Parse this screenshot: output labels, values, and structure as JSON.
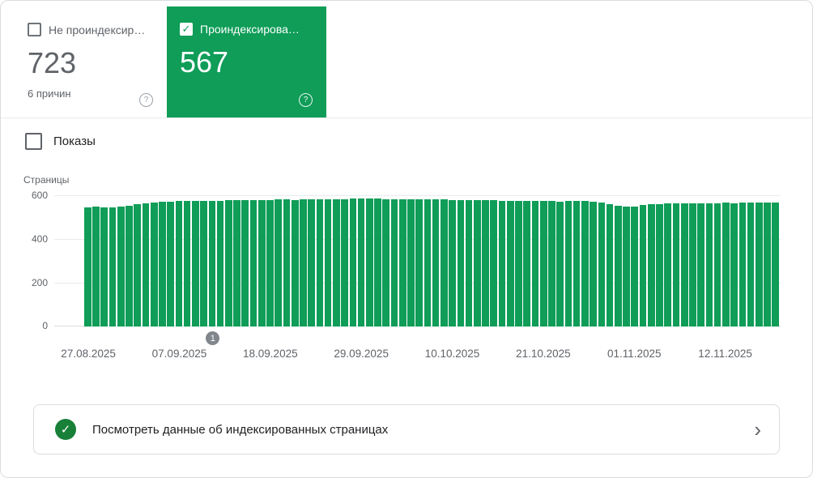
{
  "colors": {
    "green": "#0f9d58",
    "bar": "#0f9d58",
    "footer_icon_green": "#188038",
    "marker_gray": "#80868b"
  },
  "icons": {
    "check": "✓",
    "help": "?",
    "chevron": "›"
  },
  "cards": {
    "not_indexed": {
      "label": "Не проиндексир…",
      "value": "723",
      "sub": "6 причин"
    },
    "indexed": {
      "label": "Проиндексирова…",
      "value": "567"
    }
  },
  "impressions": {
    "label": "Показы"
  },
  "chart_data": {
    "type": "bar",
    "title": "",
    "xlabel": "",
    "ylabel": "Страницы",
    "ylim": [
      0,
      600
    ],
    "yticks": [
      600,
      400,
      200,
      0
    ],
    "grid": true,
    "x_labels": [
      "27.08.2025",
      "07.09.2025",
      "18.09.2025",
      "29.09.2025",
      "10.10.2025",
      "21.10.2025",
      "01.11.2025",
      "12.11.2025"
    ],
    "x_label_indices": [
      0,
      11,
      22,
      33,
      44,
      55,
      66,
      77
    ],
    "values": [
      545,
      547,
      544,
      546,
      548,
      553,
      558,
      562,
      566,
      569,
      571,
      573,
      574,
      575,
      575,
      576,
      576,
      577,
      577,
      578,
      578,
      579,
      579,
      580,
      580,
      579,
      580,
      581,
      581,
      582,
      582,
      583,
      584,
      585,
      585,
      584,
      583,
      583,
      582,
      582,
      581,
      581,
      580,
      580,
      579,
      579,
      578,
      578,
      577,
      577,
      576,
      576,
      575,
      575,
      574,
      574,
      573,
      572,
      574,
      575,
      573,
      570,
      565,
      558,
      552,
      548,
      550,
      554,
      558,
      560,
      562,
      563,
      564,
      563,
      562,
      563,
      564,
      565,
      564,
      565,
      566,
      565,
      566,
      567
    ],
    "marker": {
      "label": "1",
      "index": 15
    }
  },
  "footer": {
    "text": "Посмотреть данные об индексированных страницах"
  }
}
